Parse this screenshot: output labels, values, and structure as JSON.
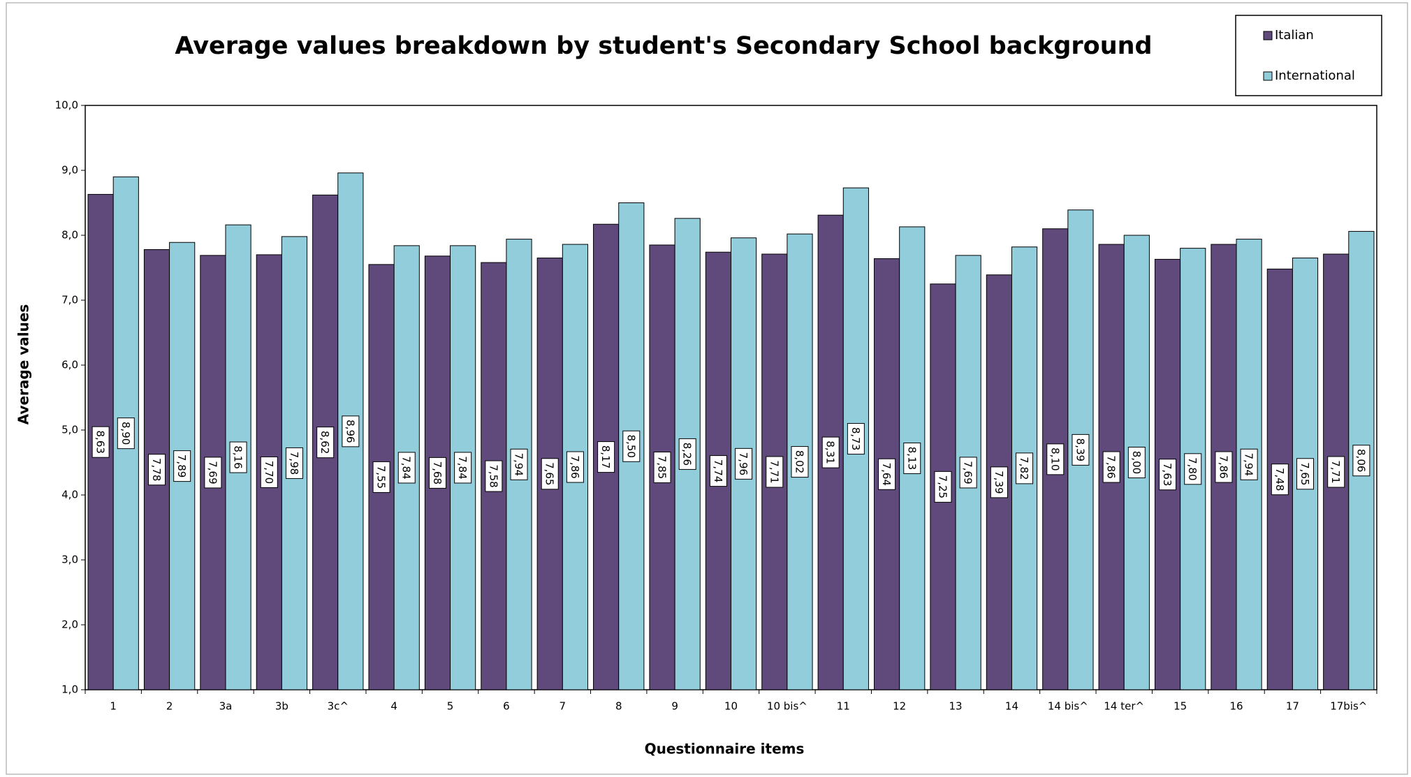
{
  "chart_data": {
    "type": "bar",
    "title": "Average values breakdown by student's Secondary School background",
    "x_label": "Questionnaire items",
    "y_label": "Average values",
    "categories": [
      "1",
      "2",
      "3a",
      "3b",
      "3c^",
      "4",
      "5",
      "6",
      "7",
      "8",
      "9",
      "10",
      "10 bis^",
      "11",
      "12",
      "13",
      "14",
      "14 bis^",
      "14 ter^",
      "15",
      "16",
      "17",
      "17bis^"
    ],
    "series": [
      {
        "name": "Italian",
        "color": "#604a7b",
        "values": [
          8.63,
          7.78,
          7.69,
          7.7,
          8.62,
          7.55,
          7.68,
          7.58,
          7.65,
          8.17,
          7.85,
          7.74,
          7.71,
          8.31,
          7.64,
          7.25,
          7.39,
          8.1,
          7.86,
          7.63,
          7.86,
          7.48,
          7.71
        ],
        "value_labels": [
          "8,63",
          "7,78",
          "7,69",
          "7,70",
          "8,62",
          "7,55",
          "7,68",
          "7,58",
          "7,65",
          "8,17",
          "7,85",
          "7,74",
          "7,71",
          "8,31",
          "7,64",
          "7,25",
          "7,39",
          "8,10",
          "7,86",
          "7,63",
          "7,86",
          "7,48",
          "7,71"
        ]
      },
      {
        "name": "International",
        "color": "#92cddc",
        "values": [
          8.9,
          7.89,
          8.16,
          7.98,
          8.96,
          7.84,
          7.84,
          7.94,
          7.86,
          8.5,
          8.26,
          7.96,
          8.02,
          8.73,
          8.13,
          7.69,
          7.82,
          8.39,
          8.0,
          7.8,
          7.94,
          7.65,
          8.06
        ],
        "value_labels": [
          "8,90",
          "7,89",
          "8,16",
          "7,98",
          "8,96",
          "7,84",
          "7,84",
          "7,94",
          "7,86",
          "8,50",
          "8,26",
          "7,96",
          "8,02",
          "8,73",
          "8,13",
          "7,69",
          "7,82",
          "8,39",
          "8,00",
          "7,80",
          "7,94",
          "7,65",
          "8,06"
        ]
      }
    ],
    "ylim": [
      1,
      10
    ],
    "yticks": [
      {
        "value": 1,
        "label": "1,0"
      },
      {
        "value": 2,
        "label": "2,0"
      },
      {
        "value": 3,
        "label": "3,0"
      },
      {
        "value": 4,
        "label": "4,0"
      },
      {
        "value": 5,
        "label": "5,0"
      },
      {
        "value": 6,
        "label": "6,0"
      },
      {
        "value": 7,
        "label": "7,0"
      },
      {
        "value": 8,
        "label": "8,0"
      },
      {
        "value": 9,
        "label": "9,0"
      },
      {
        "value": 10,
        "label": "10,0"
      }
    ],
    "grid": false,
    "legend": "top-right"
  }
}
